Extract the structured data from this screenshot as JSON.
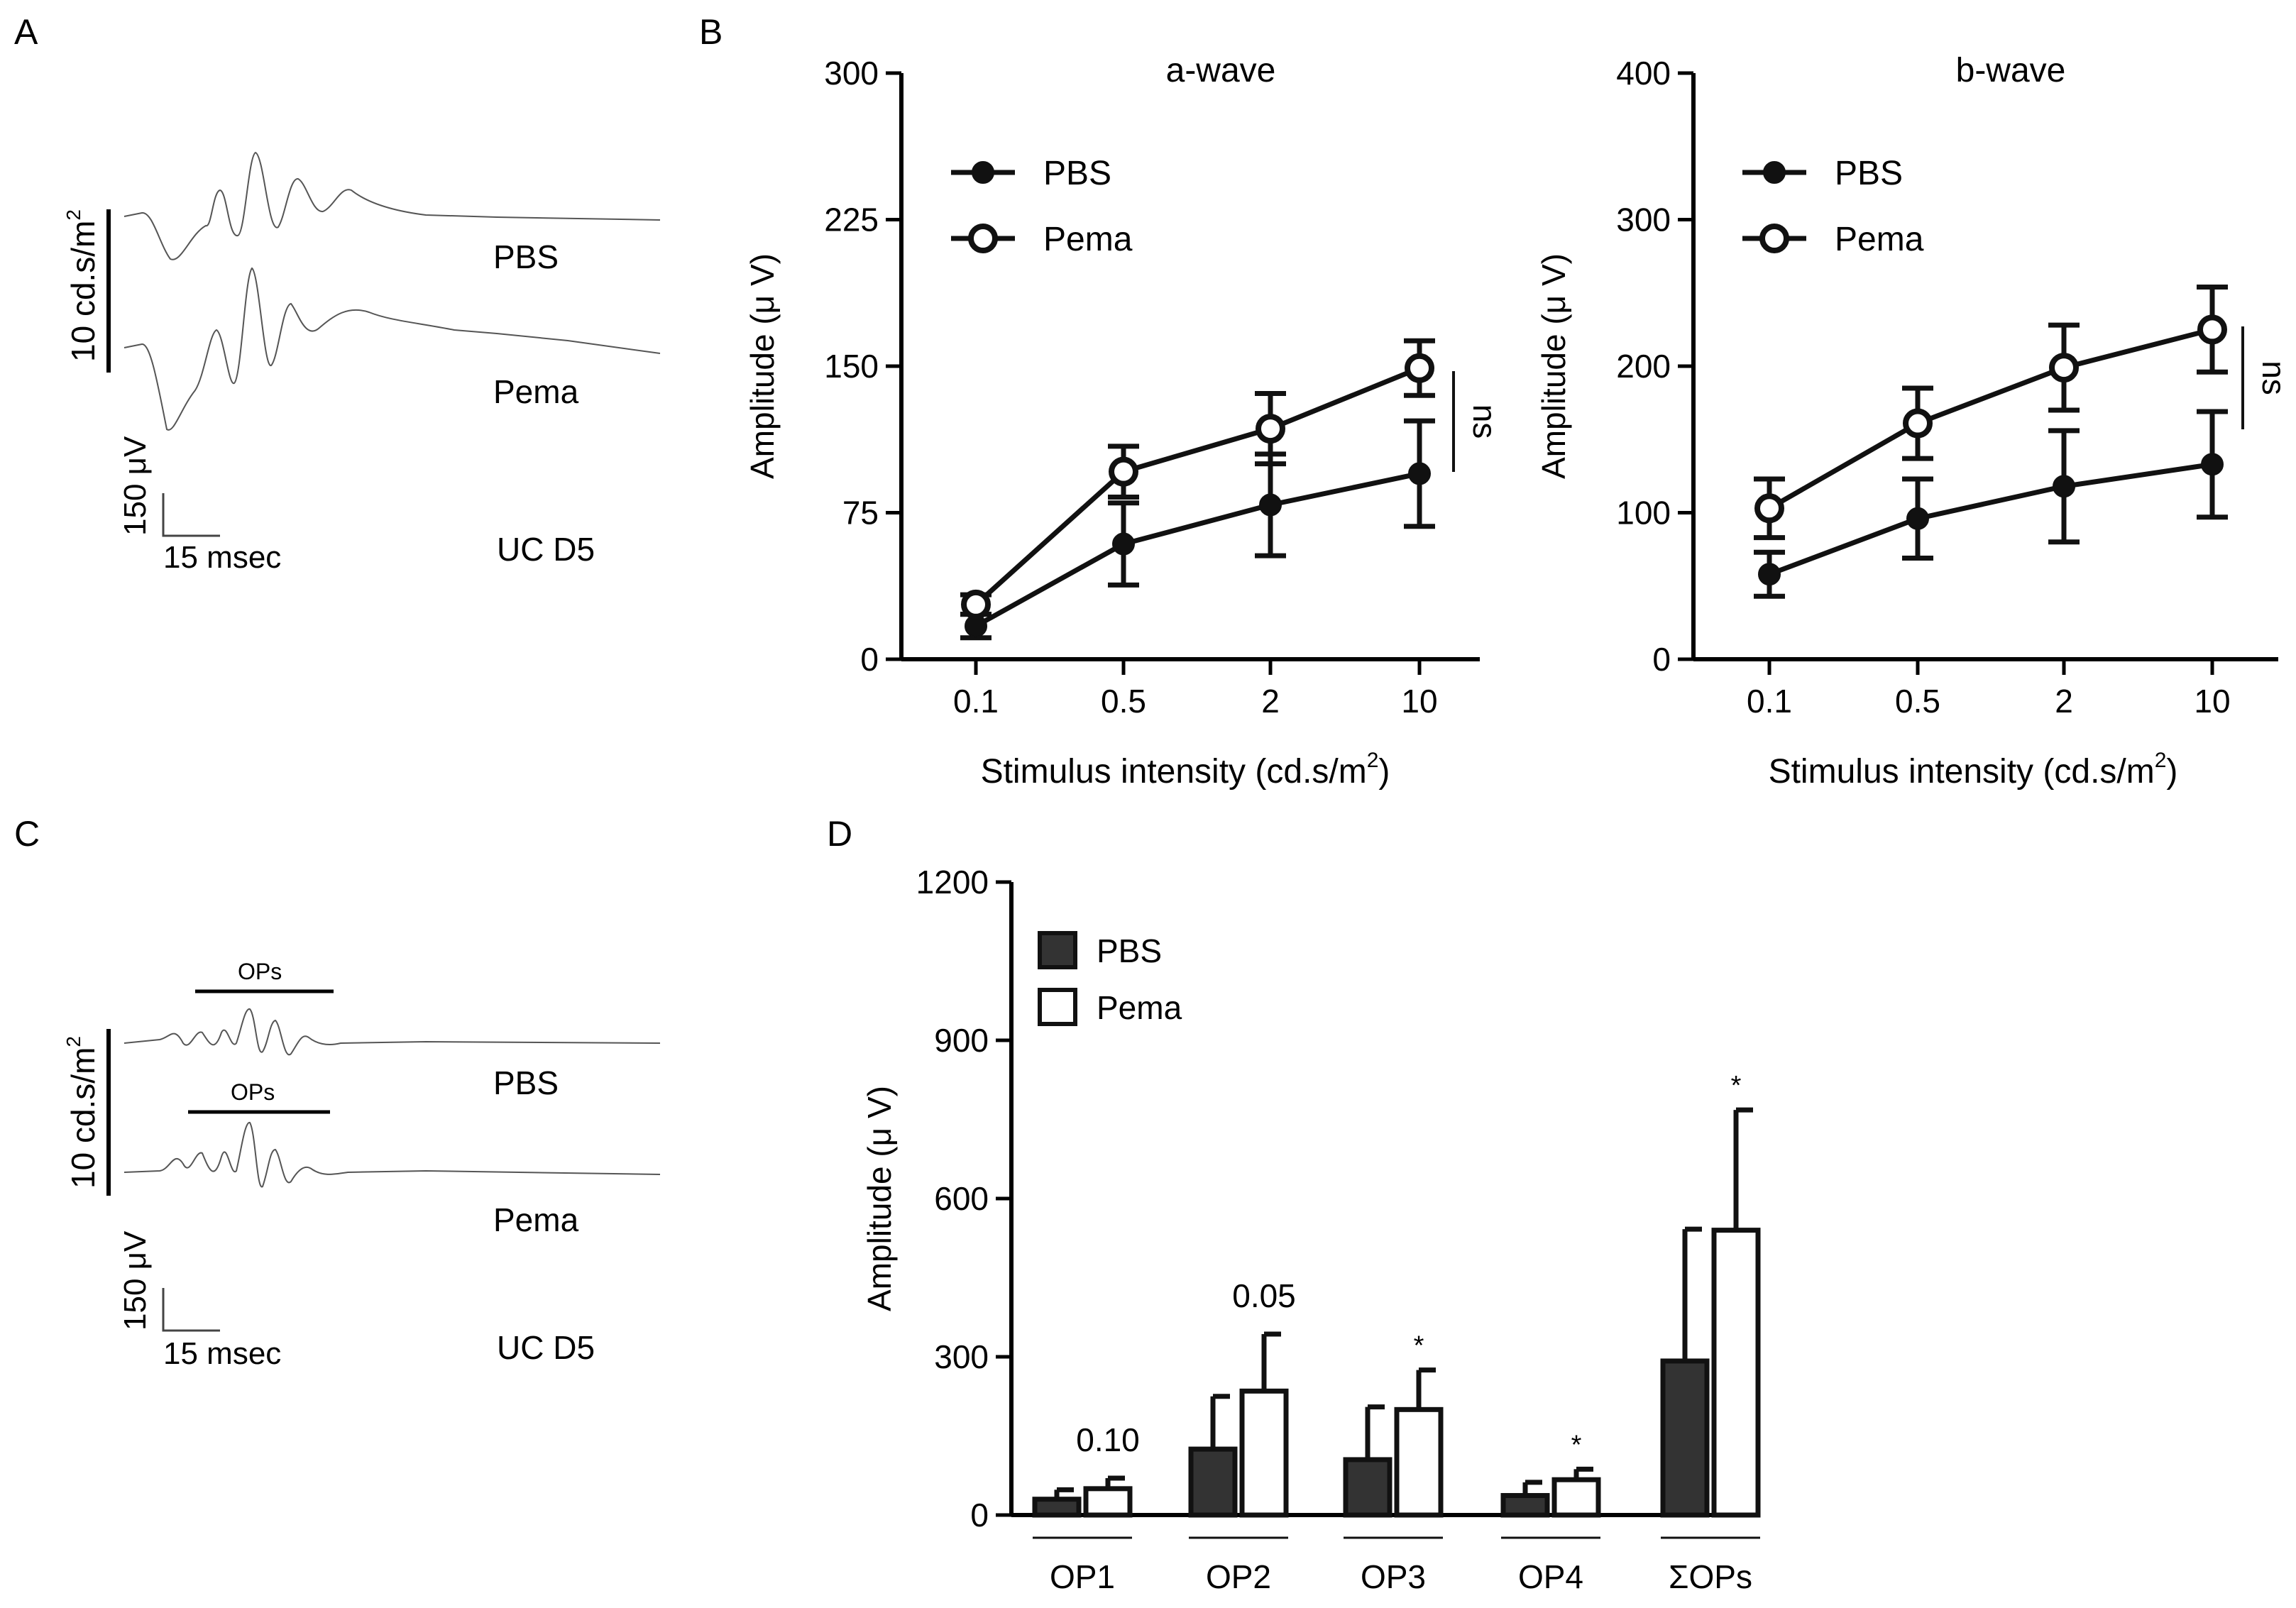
{
  "panels": {
    "a": "A",
    "b": "B",
    "c": "C",
    "d": "D"
  },
  "traces_top": {
    "scale_vertical": "10 cd.s/m",
    "scale_superscript": "2",
    "trace1": "PBS",
    "trace2": "Pema",
    "scale_uv": "150 μV",
    "scale_ms": "15 msec",
    "condition": "UC D5"
  },
  "traces_bottom": {
    "scale_vertical": "10 cd.s/m",
    "scale_superscript": "2",
    "trace1": "PBS",
    "trace2": "Pema",
    "ops1": "OPs",
    "ops2": "OPs",
    "scale_uv": "150 μV",
    "scale_ms": "15 msec",
    "condition": "UC D5"
  },
  "chart_data": [
    {
      "type": "line",
      "title": "a-wave",
      "xlabel": "Stimulus intensity (cd.s/m",
      "xlabel_sup": "2",
      "xlabel_close": ")",
      "ylabel": "Amplitude (μ V)",
      "categories": [
        "0.1",
        "0.5",
        "2",
        "10"
      ],
      "ylim": [
        0,
        300
      ],
      "yticks": [
        "0",
        "75",
        "150",
        "225",
        "300"
      ],
      "series": [
        {
          "name": "PBS",
          "marker": "filled",
          "values": [
            17,
            59,
            79,
            95
          ],
          "errors": [
            6,
            21,
            26,
            27
          ]
        },
        {
          "name": "Pema",
          "marker": "open",
          "values": [
            28,
            96,
            118,
            149
          ],
          "errors": [
            5,
            13,
            18,
            14
          ]
        }
      ],
      "significance": "ns"
    },
    {
      "type": "line",
      "title": "b-wave",
      "xlabel": "Stimulus intensity (cd.s/m",
      "xlabel_sup": "2",
      "xlabel_close": ")",
      "ylabel": "Amplitude (μ V)",
      "categories": [
        "0.1",
        "0.5",
        "2",
        "10"
      ],
      "ylim": [
        0,
        400
      ],
      "yticks": [
        "0",
        "100",
        "200",
        "300",
        "400"
      ],
      "series": [
        {
          "name": "PBS",
          "marker": "filled",
          "values": [
            58,
            96,
            118,
            133
          ],
          "errors": [
            15,
            27,
            38,
            36
          ]
        },
        {
          "name": "Pema",
          "marker": "open",
          "values": [
            103,
            161,
            199,
            225
          ],
          "errors": [
            20,
            24,
            29,
            29
          ]
        }
      ],
      "significance": "ns"
    },
    {
      "type": "bar",
      "ylabel": "Amplitude (μ V)",
      "categories": [
        "OP1",
        "OP2",
        "OP3",
        "OP4",
        "ΣOPs"
      ],
      "ylim": [
        0,
        1200
      ],
      "yticks": [
        "0",
        "300",
        "600",
        "900",
        "1200"
      ],
      "series": [
        {
          "name": "PBS",
          "color": "#333333",
          "values": [
            30,
            125,
            105,
            37,
            292
          ],
          "errors": [
            18,
            100,
            100,
            25,
            250
          ]
        },
        {
          "name": "Pema",
          "color": "#ffffff",
          "values": [
            50,
            235,
            200,
            67,
            540
          ],
          "errors": [
            20,
            108,
            75,
            20,
            228
          ]
        }
      ],
      "annotations": [
        "0.10",
        "0.05",
        "*",
        "*",
        "*"
      ]
    }
  ]
}
